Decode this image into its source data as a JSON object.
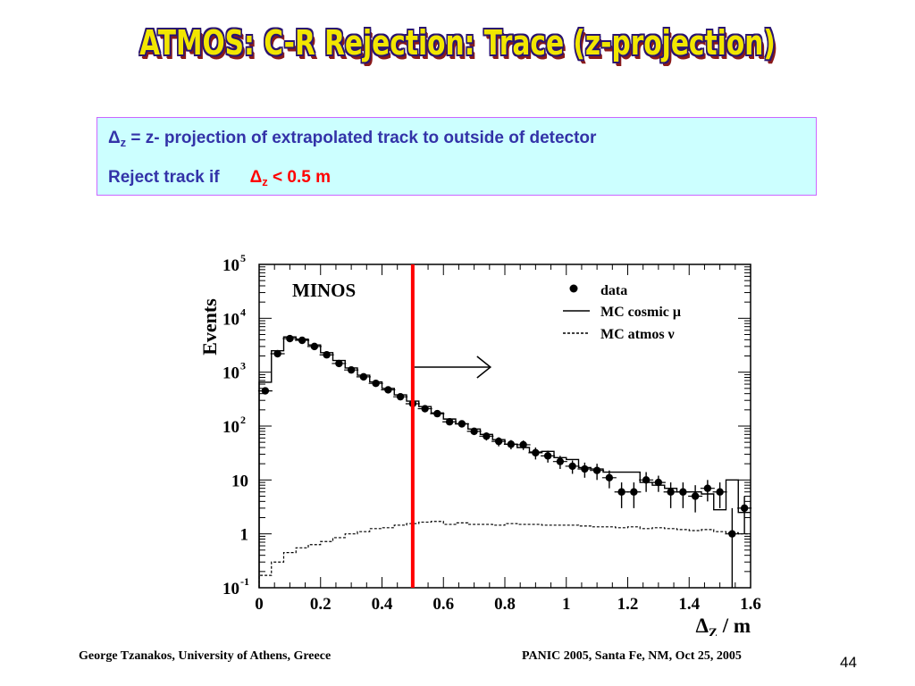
{
  "slide": {
    "title": "ATMOS: C-R Rejection: Trace (z-projection)",
    "definition": {
      "line1_symbol": "Δ",
      "line1_sub": "z",
      "line1_text": " = z- projection of extrapolated track to outside of detector",
      "line2_text": "Reject track if",
      "line2_symbol": "Δ",
      "line2_sub": "z",
      "line2_cut": " < 0.5 m"
    },
    "footer_left": "George Tzanakos, University of Athens, Greece",
    "footer_right": "PANIC 2005, Santa Fe, NM, Oct 25, 2005",
    "page_number": "44"
  },
  "colors": {
    "title_fill": "#f2e600",
    "title_outline": "#2a1470",
    "box_background": "#ccffff",
    "box_border": "#cc66ff",
    "text_blue": "#3333a8",
    "cut_red": "#ff0000"
  },
  "chart_data": {
    "type": "scatter",
    "label": "MINOS",
    "ylabel": "Events",
    "xlabel_symbol": "Δ",
    "xlabel_sub": "Z",
    "xlabel_unit": " / m",
    "xlim": [
      0,
      1.6
    ],
    "ylim_log": [
      0.1,
      100000
    ],
    "y_log_scale": true,
    "x_ticks": [
      0,
      0.2,
      0.4,
      0.6,
      0.8,
      1,
      1.2,
      1.4,
      1.6
    ],
    "x_tick_labels": [
      "0",
      "0.2",
      "0.4",
      "0.6",
      "0.8",
      "1",
      "1.2",
      "1.4",
      "1.6"
    ],
    "y_ticks": [
      0.1,
      1,
      10,
      100,
      1000,
      10000,
      100000
    ],
    "y_tick_labels": [
      {
        "base": "10",
        "exp": "-1"
      },
      {
        "base": "1",
        "exp": ""
      },
      {
        "base": "10",
        "exp": ""
      },
      {
        "base": "10",
        "exp": "2"
      },
      {
        "base": "10",
        "exp": "3"
      },
      {
        "base": "10",
        "exp": "4"
      },
      {
        "base": "10",
        "exp": "5"
      }
    ],
    "legend": [
      {
        "marker": "dot",
        "label": "data"
      },
      {
        "marker": "solid",
        "label": "MC cosmic μ"
      },
      {
        "marker": "dashed",
        "label": "MC atmos ν"
      }
    ],
    "cut_value": 0.5,
    "bin_edges": [
      0,
      0.04,
      0.08,
      0.12,
      0.16,
      0.2,
      0.24,
      0.28,
      0.32,
      0.36,
      0.4,
      0.44,
      0.48,
      0.52,
      0.56,
      0.6,
      0.64,
      0.68,
      0.72,
      0.76,
      0.8,
      0.84,
      0.88,
      0.92,
      0.96,
      1,
      1.04,
      1.08,
      1.12,
      1.16,
      1.2,
      1.24,
      1.28,
      1.32,
      1.36,
      1.4,
      1.44,
      1.48,
      1.52,
      1.56,
      1.6
    ],
    "data": {
      "x": [
        0.02,
        0.06,
        0.1,
        0.14,
        0.18,
        0.22,
        0.26,
        0.3,
        0.34,
        0.38,
        0.42,
        0.46,
        0.5,
        0.54,
        0.58,
        0.62,
        0.66,
        0.7,
        0.74,
        0.78,
        0.82,
        0.86,
        0.9,
        0.94,
        0.98,
        1.02,
        1.06,
        1.1,
        1.14,
        1.18,
        1.22,
        1.26,
        1.3,
        1.34,
        1.38,
        1.42,
        1.46,
        1.5,
        1.54,
        1.58
      ],
      "y": [
        450,
        2200,
        4200,
        3900,
        3000,
        2100,
        1450,
        1100,
        820,
        620,
        470,
        350,
        260,
        210,
        170,
        120,
        110,
        80,
        65,
        52,
        46,
        45,
        32,
        28,
        22,
        18,
        16,
        15,
        11,
        6,
        6,
        10,
        9,
        6,
        6,
        5,
        7,
        6,
        1,
        3
      ],
      "err_low": [
        30,
        60,
        80,
        80,
        70,
        60,
        50,
        45,
        40,
        35,
        30,
        25,
        22,
        20,
        18,
        15,
        14,
        12,
        11,
        10,
        9,
        9,
        8,
        7,
        6,
        5,
        5,
        5,
        4,
        3,
        3,
        4,
        3,
        3,
        3,
        2.5,
        3,
        3,
        0.9,
        2
      ],
      "err_high": [
        30,
        60,
        80,
        80,
        70,
        60,
        50,
        45,
        40,
        35,
        30,
        25,
        22,
        20,
        18,
        15,
        14,
        12,
        11,
        10,
        9,
        9,
        8,
        7,
        6,
        5,
        5,
        5,
        4,
        3,
        3,
        4,
        3,
        3,
        3,
        3,
        3,
        3,
        2,
        2
      ]
    },
    "mc_cosmic": [
      650,
      2500,
      4500,
      4100,
      3200,
      2300,
      1650,
      1200,
      880,
      660,
      500,
      380,
      290,
      230,
      175,
      135,
      110,
      88,
      70,
      56,
      46,
      40,
      33,
      34,
      26,
      24,
      17,
      16,
      14,
      14,
      14,
      9,
      8,
      7,
      6,
      6,
      5.5,
      2.8,
      10,
      2.5
    ],
    "mc_atmos": [
      0.17,
      0.3,
      0.45,
      0.55,
      0.63,
      0.72,
      0.85,
      1.0,
      1.1,
      1.25,
      1.3,
      1.45,
      1.55,
      1.65,
      1.7,
      1.5,
      1.6,
      1.5,
      1.5,
      1.45,
      1.55,
      1.5,
      1.5,
      1.45,
      1.45,
      1.45,
      1.4,
      1.35,
      1.35,
      1.3,
      1.35,
      1.25,
      1.3,
      1.25,
      1.2,
      1.15,
      1.2,
      1.1,
      1.05,
      1.0
    ]
  }
}
